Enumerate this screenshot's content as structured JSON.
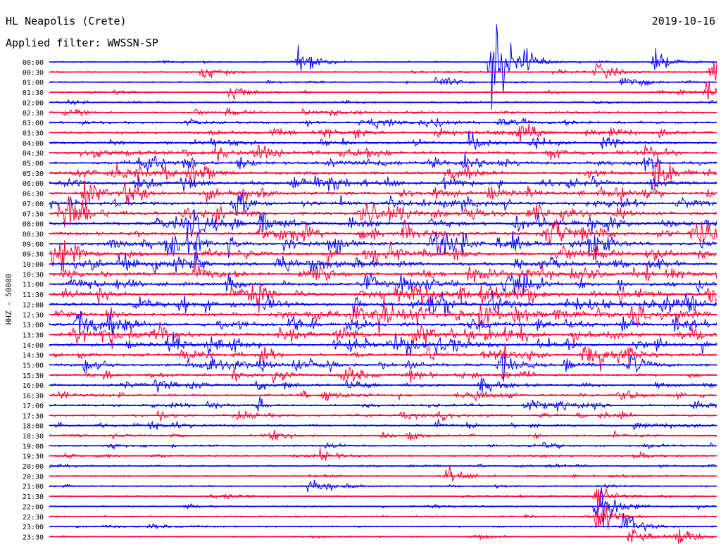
{
  "header": {
    "station": "HL Neapolis (Crete)",
    "filter": "Applied filter: WWSSN-SP",
    "date": "2019-10-16",
    "channel_label": "HHZ - 50000"
  },
  "colors": {
    "even_trace": "#0000ff",
    "odd_trace": "#ff0033",
    "text": "#000000",
    "background": "#ffffff"
  },
  "chart_data": {
    "type": "line",
    "title": "HL Neapolis (Crete)",
    "subtitle": "Applied filter: WWSSN-SP",
    "ylabel": "HHZ - 50000",
    "x": "",
    "row_labels": [
      "00:00",
      "00:30",
      "01:00",
      "01:30",
      "02:00",
      "02:30",
      "03:00",
      "03:30",
      "04:00",
      "04:30",
      "05:00",
      "05:30",
      "06:00",
      "06:30",
      "07:00",
      "07:30",
      "08:00",
      "08:30",
      "09:00",
      "09:30",
      "10:00",
      "10:30",
      "11:00",
      "11:30",
      "12:00",
      "12:30",
      "13:00",
      "13:30",
      "14:00",
      "14:30",
      "15:00",
      "15:30",
      "16:00",
      "16:30",
      "17:00",
      "17:30",
      "18:00",
      "18:30",
      "19:00",
      "19:30",
      "20:00",
      "20:30",
      "21:00",
      "21:30",
      "22:00",
      "22:30",
      "23:00",
      "23:30"
    ],
    "row_activity": [
      0.1,
      0.12,
      0.14,
      0.16,
      0.22,
      0.32,
      0.42,
      0.5,
      0.55,
      0.6,
      0.62,
      0.66,
      0.7,
      0.72,
      0.74,
      0.78,
      0.8,
      0.82,
      0.82,
      0.82,
      0.8,
      0.82,
      0.84,
      0.86,
      0.88,
      0.88,
      0.86,
      0.84,
      0.8,
      0.74,
      0.66,
      0.6,
      0.55,
      0.48,
      0.44,
      0.4,
      0.38,
      0.34,
      0.3,
      0.26,
      0.22,
      0.2,
      0.18,
      0.18,
      0.16,
      0.14,
      0.12,
      0.12
    ],
    "events": [
      {
        "row": 0,
        "x_frac": 0.373,
        "amp": 2.2
      },
      {
        "row": 0,
        "x_frac": 0.662,
        "amp": 9.0
      },
      {
        "row": 0,
        "x_frac": 0.71,
        "amp": 1.6
      },
      {
        "row": 0,
        "x_frac": 0.906,
        "amp": 1.8
      },
      {
        "row": 1,
        "x_frac": 0.23,
        "amp": 1.4
      },
      {
        "row": 1,
        "x_frac": 0.82,
        "amp": 1.6
      },
      {
        "row": 1,
        "x_frac": 0.99,
        "amp": 2.4
      },
      {
        "row": 2,
        "x_frac": 0.58,
        "amp": 1.4
      },
      {
        "row": 2,
        "x_frac": 0.86,
        "amp": 1.5
      },
      {
        "row": 3,
        "x_frac": 0.27,
        "amp": 1.6
      },
      {
        "row": 3,
        "x_frac": 0.985,
        "amp": 1.8
      },
      {
        "row": 41,
        "x_frac": 0.595,
        "amp": 1.6
      },
      {
        "row": 42,
        "x_frac": 0.39,
        "amp": 2.0
      },
      {
        "row": 43,
        "x_frac": 0.82,
        "amp": 1.8
      },
      {
        "row": 44,
        "x_frac": 0.82,
        "amp": 5.0
      },
      {
        "row": 45,
        "x_frac": 0.82,
        "amp": 3.2
      },
      {
        "row": 46,
        "x_frac": 0.86,
        "amp": 2.2
      },
      {
        "row": 47,
        "x_frac": 0.87,
        "amp": 2.0
      },
      {
        "row": 47,
        "x_frac": 0.94,
        "amp": 1.8
      }
    ],
    "grid": false,
    "legend": "none"
  }
}
